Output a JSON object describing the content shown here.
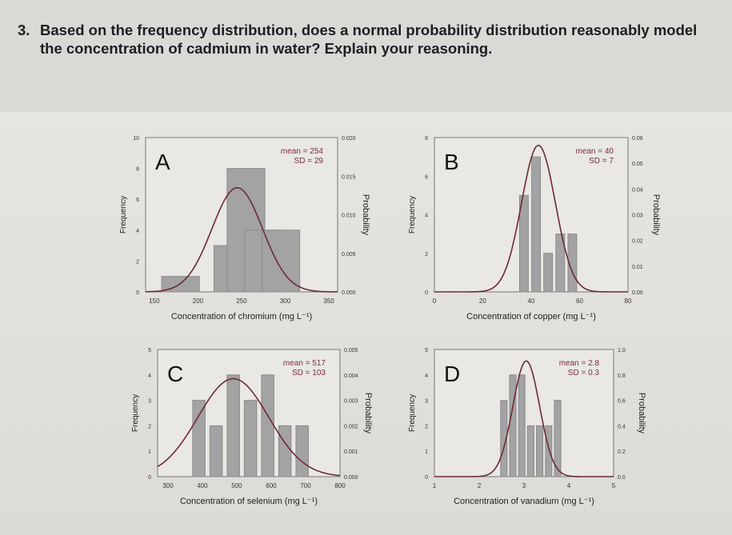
{
  "question": {
    "number": "3.",
    "text": "Based on the frequency distribution, does a normal probability distribution reasonably model the concentration of cadmium in water? Explain your reasoning."
  },
  "colors": {
    "bar": "#a3a3a3",
    "curve": "#6e2a35",
    "annotation": "#7a2d40"
  },
  "chart_data": [
    {
      "type": "bar",
      "panel": "A",
      "title": "",
      "xlabel": "Concentration of chromium (mg L⁻¹)",
      "ylabel": "Frequency",
      "y2label": "Probability",
      "annotation": [
        "mean = 254",
        "SD = 29"
      ],
      "xlim": [
        140,
        360
      ],
      "ylim": [
        0,
        10
      ],
      "y2lim": [
        0,
        0.02
      ],
      "xticks": [
        "150",
        "200",
        "250",
        "300",
        "350"
      ],
      "yticks": [
        "0",
        "2",
        "4",
        "6",
        "8",
        "10"
      ],
      "y2ticks": [
        "0.000",
        "0.005",
        "0.010",
        "0.015",
        "0.020"
      ],
      "bar_x": [
        180,
        240,
        255,
        275,
        295
      ],
      "values": [
        1,
        3,
        8,
        4,
        4
      ],
      "curve": {
        "mean": 254,
        "sd": 29,
        "peak_x": 245,
        "peak_probability": 0.0135
      }
    },
    {
      "type": "bar",
      "panel": "B",
      "title": "",
      "xlabel": "Concentration of copper (mg L⁻¹)",
      "ylabel": "Frequency",
      "y2label": "Probability",
      "annotation": [
        "mean = 40",
        "SD = 7"
      ],
      "xlim": [
        0,
        80
      ],
      "ylim": [
        0,
        8
      ],
      "y2lim": [
        0,
        0.06
      ],
      "xticks": [
        "0",
        "20",
        "40",
        "60",
        "80"
      ],
      "yticks": [
        "0",
        "2",
        "4",
        "6",
        "8"
      ],
      "y2ticks": [
        "0.00",
        "0.01",
        "0.02",
        "0.03",
        "0.04",
        "0.05",
        "0.06"
      ],
      "bar_x": [
        37,
        42,
        47,
        52,
        57
      ],
      "values": [
        5,
        7,
        2,
        3,
        3
      ],
      "curve": {
        "mean": 40,
        "sd": 7,
        "peak_x": 43,
        "peak_probability": 0.057
      }
    },
    {
      "type": "bar",
      "panel": "C",
      "title": "",
      "xlabel": "Concentration of selenium (mg L⁻¹)",
      "ylabel": "Frequency",
      "y2label": "Probability",
      "annotation": [
        "mean = 517",
        "SD = 103"
      ],
      "xlim": [
        270,
        800
      ],
      "ylim": [
        0,
        5
      ],
      "y2lim": [
        0,
        0.005
      ],
      "xticks": [
        "300",
        "400",
        "500",
        "600",
        "700",
        "800"
      ],
      "yticks": [
        "0",
        "1",
        "2",
        "3",
        "4",
        "5"
      ],
      "y2ticks": [
        "0.000",
        "0.001",
        "0.002",
        "0.003",
        "0.004",
        "0.005"
      ],
      "bar_x": [
        390,
        440,
        490,
        540,
        590,
        640,
        690
      ],
      "values": [
        3,
        2,
        4,
        3,
        4,
        2,
        2
      ],
      "curve": {
        "mean": 517,
        "sd": 103,
        "peak_x": 490,
        "peak_probability": 0.00385
      }
    },
    {
      "type": "bar",
      "panel": "D",
      "title": "",
      "xlabel": "Concentration of vanadium (mg L⁻¹)",
      "ylabel": "Frequency",
      "y2label": "Probability",
      "annotation": [
        "mean = 2.8",
        "SD = 0.3"
      ],
      "xlim": [
        1,
        5
      ],
      "ylim": [
        0,
        5
      ],
      "y2lim": [
        0,
        1.0
      ],
      "xticks": [
        "1",
        "2",
        "3",
        "4",
        "5"
      ],
      "yticks": [
        "0",
        "1",
        "2",
        "3",
        "4",
        "5"
      ],
      "y2ticks": [
        "0.0",
        "0.2",
        "0.4",
        "0.6",
        "0.8",
        "1.0"
      ],
      "bar_x": [
        2.55,
        2.75,
        2.95,
        3.15,
        3.35,
        3.55,
        3.75
      ],
      "values": [
        3,
        4,
        4,
        2,
        2,
        2,
        3
      ],
      "curve": {
        "mean": 2.8,
        "sd": 0.3,
        "peak_x": 3.05,
        "peak_probability": 0.91
      }
    }
  ]
}
